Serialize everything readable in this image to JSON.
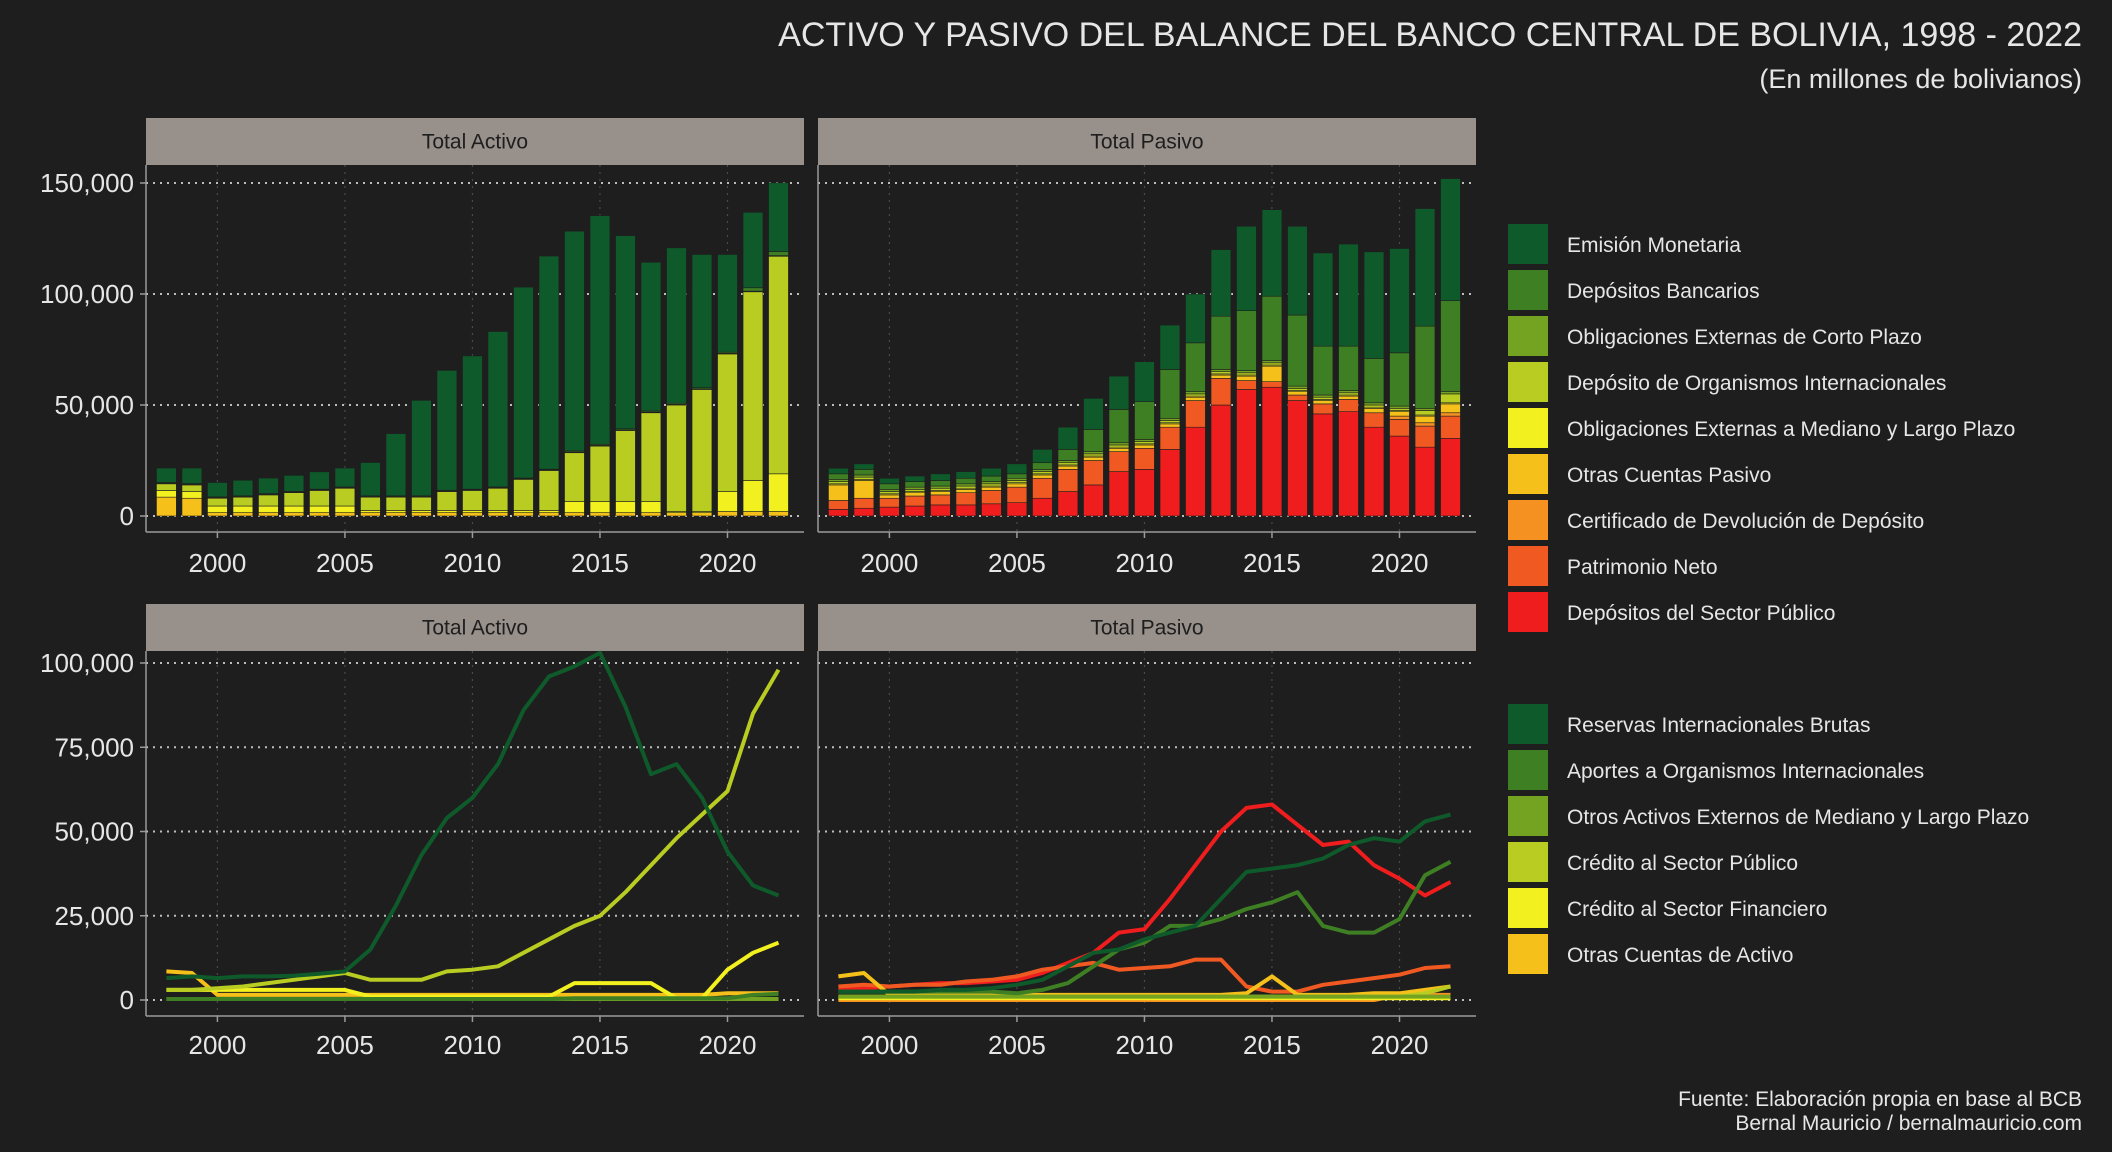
{
  "title": "ACTIVO Y PASIVO DEL BALANCE DEL BANCO CENTRAL DE BOLIVIA, 1998 - 2022",
  "subtitle": "(En millones de bolivianos)",
  "source_line1": "Fuente: Elaboración propia en base al BCB",
  "source_line2": "Bernal Mauricio / bernalmauricio.com",
  "colors": {
    "background": "#1e1e1e",
    "strip": "#98908a",
    "grid": "#bdbdbd"
  },
  "years": [
    1998,
    1999,
    2000,
    2001,
    2002,
    2003,
    2004,
    2005,
    2006,
    2007,
    2008,
    2009,
    2010,
    2011,
    2012,
    2013,
    2014,
    2015,
    2016,
    2017,
    2018,
    2019,
    2020,
    2021,
    2022
  ],
  "legend_pasivo": [
    {
      "name": "Emisión Monetaria",
      "color": "#0f5a2a"
    },
    {
      "name": "Depósitos Bancarios",
      "color": "#3f7f24"
    },
    {
      "name": "Obligaciones Externas de Corto Plazo",
      "color": "#74a321"
    },
    {
      "name": "Depósito de Organismos Internacionales",
      "color": "#b8cc22"
    },
    {
      "name": "Obligaciones Externas a Mediano y Largo Plazo",
      "color": "#f2f01e"
    },
    {
      "name": "Otras Cuentas Pasivo",
      "color": "#f5c01a"
    },
    {
      "name": "Certificado de Devolución de Depósito",
      "color": "#f59120"
    },
    {
      "name": "Patrimonio Neto",
      "color": "#f05a22"
    },
    {
      "name": "Depósitos del Sector Público",
      "color": "#ef1d1d"
    }
  ],
  "legend_activo": [
    {
      "name": "Reservas Internacionales Brutas",
      "color": "#0f5a2a"
    },
    {
      "name": "Aportes a Organismos Internacionales",
      "color": "#3f7f24"
    },
    {
      "name": "Otros Activos Externos de Mediano y Largo Plazo",
      "color": "#74a321"
    },
    {
      "name": "Crédito al Sector Público",
      "color": "#b8cc22"
    },
    {
      "name": "Crédito al Sector Financiero",
      "color": "#f2f01e"
    },
    {
      "name": "Otras Cuentas de Activo",
      "color": "#f5c01a"
    }
  ],
  "chart_data": [
    {
      "type": "bar",
      "stacked": true,
      "panel": "Total Activo",
      "ylim": [
        0,
        150000
      ],
      "yticks": [
        0,
        50000,
        100000,
        150000
      ],
      "ytick_labels": [
        "0",
        "50,000",
        "100,000",
        "150,000"
      ],
      "xticks": [
        2000,
        2005,
        2010,
        2015,
        2020
      ],
      "grid": true,
      "series": [
        {
          "name": "Otras Cuentas de Activo",
          "values": [
            8500,
            8000,
            1500,
            1500,
            1500,
            1500,
            1500,
            1500,
            1500,
            1500,
            1500,
            1500,
            1500,
            1500,
            1500,
            1500,
            1500,
            1500,
            1500,
            1500,
            1500,
            1500,
            2000,
            2000,
            2000
          ]
        },
        {
          "name": "Crédito al Sector Financiero",
          "values": [
            3000,
            3000,
            3000,
            3000,
            3000,
            3000,
            3000,
            3000,
            1000,
            1000,
            1000,
            1000,
            1000,
            1000,
            1000,
            1000,
            5000,
            5000,
            5000,
            5000,
            500,
            500,
            9000,
            14000,
            17000
          ]
        },
        {
          "name": "Crédito al Sector Público",
          "values": [
            3000,
            3000,
            3500,
            4000,
            5000,
            6000,
            7000,
            8000,
            6000,
            6000,
            6000,
            8500,
            9000,
            10000,
            14000,
            18000,
            22000,
            25000,
            32000,
            40000,
            48000,
            55000,
            62000,
            85000,
            98000
          ]
        },
        {
          "name": "Otros Activos Externos de Mediano y Largo Plazo",
          "values": [
            300,
            300,
            300,
            300,
            300,
            300,
            300,
            300,
            300,
            300,
            300,
            300,
            300,
            300,
            300,
            300,
            300,
            300,
            300,
            300,
            300,
            300,
            300,
            300,
            300
          ]
        },
        {
          "name": "Aportes a Organismos Internacionales",
          "values": [
            300,
            300,
            300,
            300,
            300,
            300,
            300,
            300,
            300,
            300,
            300,
            300,
            300,
            300,
            300,
            300,
            500,
            500,
            500,
            500,
            500,
            500,
            500,
            1500,
            1800
          ]
        },
        {
          "name": "Reservas Internacionales Brutas",
          "values": [
            6500,
            7000,
            6500,
            7000,
            7000,
            7200,
            7800,
            8500,
            15000,
            28000,
            43000,
            54000,
            60000,
            70000,
            86000,
            96000,
            99000,
            103000,
            87000,
            67000,
            70000,
            60000,
            44000,
            34000,
            31000
          ]
        }
      ]
    },
    {
      "type": "bar",
      "stacked": true,
      "panel": "Total Pasivo",
      "ylim": [
        0,
        150000
      ],
      "yticks": [
        0,
        50000,
        100000,
        150000
      ],
      "xticks": [
        2000,
        2005,
        2010,
        2015,
        2020
      ],
      "grid": true,
      "series": [
        {
          "name": "Depósitos del Sector Público",
          "values": [
            3000,
            3500,
            4000,
            4500,
            5000,
            5000,
            5500,
            6000,
            8000,
            11000,
            14000,
            20000,
            21000,
            30000,
            40000,
            50000,
            57000,
            58000,
            52000,
            46000,
            47000,
            40000,
            36000,
            31000,
            35000
          ]
        },
        {
          "name": "Patrimonio Neto",
          "values": [
            4000,
            4500,
            4000,
            4500,
            4500,
            5500,
            6000,
            7000,
            9000,
            10000,
            11000,
            9000,
            9500,
            10000,
            12000,
            12000,
            4000,
            2500,
            2500,
            4500,
            5500,
            6500,
            7500,
            9500,
            10000
          ]
        },
        {
          "name": "Certificado de Devolución de Depósito",
          "values": [
            0,
            0,
            0,
            0,
            0,
            0,
            0,
            0,
            0,
            0,
            0,
            0,
            0,
            0,
            0,
            0,
            0,
            0,
            0,
            0,
            0,
            0,
            1500,
            1500,
            1500
          ]
        },
        {
          "name": "Otras Cuentas Pasivo",
          "values": [
            7000,
            8000,
            1500,
            1500,
            1500,
            1500,
            1500,
            1500,
            1500,
            1500,
            1500,
            1500,
            1500,
            1500,
            1500,
            1500,
            2000,
            7000,
            1500,
            1500,
            1500,
            2000,
            2000,
            3000,
            4000
          ]
        },
        {
          "name": "Obligaciones Externas a Mediano y Largo Plazo",
          "values": [
            500,
            500,
            500,
            500,
            500,
            500,
            500,
            500,
            500,
            500,
            500,
            500,
            500,
            500,
            500,
            500,
            500,
            500,
            500,
            500,
            500,
            500,
            500,
            500,
            500
          ]
        },
        {
          "name": "Depósito de Organismos Internacionales",
          "values": [
            1000,
            1000,
            1000,
            1000,
            1000,
            1000,
            1000,
            1000,
            1000,
            1000,
            1000,
            1000,
            1000,
            1000,
            1000,
            1000,
            1000,
            1000,
            1000,
            1000,
            1000,
            1000,
            1000,
            2000,
            4000
          ]
        },
        {
          "name": "Obligaciones Externas de Corto Plazo",
          "values": [
            1000,
            1000,
            1000,
            1000,
            1000,
            1000,
            1000,
            1000,
            1000,
            1000,
            1000,
            1000,
            1000,
            1000,
            1000,
            1000,
            1000,
            1000,
            1000,
            1000,
            1000,
            1000,
            1000,
            1000,
            1000
          ]
        },
        {
          "name": "Depósitos Bancarios",
          "values": [
            2500,
            2500,
            2500,
            2500,
            2500,
            2500,
            2500,
            2000,
            3000,
            5000,
            10000,
            15000,
            17000,
            22000,
            22000,
            24000,
            27000,
            29000,
            32000,
            22000,
            20000,
            20000,
            24000,
            37000,
            41000
          ]
        },
        {
          "name": "Emisión Monetaria",
          "values": [
            2500,
            2500,
            2500,
            2500,
            3000,
            3000,
            3500,
            4500,
            6000,
            10000,
            14000,
            15000,
            18000,
            20000,
            22000,
            30000,
            38000,
            39000,
            40000,
            42000,
            46000,
            48000,
            47000,
            53000,
            55000
          ]
        }
      ]
    },
    {
      "type": "line",
      "panel": "Total Activo",
      "ylim": [
        0,
        100000
      ],
      "yticks": [
        0,
        25000,
        50000,
        75000,
        100000
      ],
      "ytick_labels": [
        "0",
        "25,000",
        "50,000",
        "75,000",
        "100,000"
      ],
      "xticks": [
        2000,
        2005,
        2010,
        2015,
        2020
      ],
      "grid": true,
      "series_ref": "chart_data[0].series"
    },
    {
      "type": "line",
      "panel": "Total Pasivo",
      "ylim": [
        0,
        100000
      ],
      "yticks": [
        0,
        25000,
        50000,
        75000,
        100000
      ],
      "xticks": [
        2000,
        2005,
        2010,
        2015,
        2020
      ],
      "grid": true,
      "series_ref": "chart_data[1].series"
    }
  ]
}
